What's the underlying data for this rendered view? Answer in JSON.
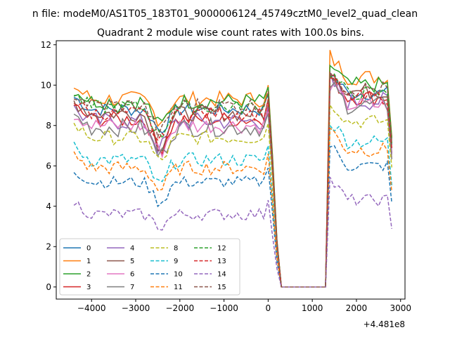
{
  "figure": {
    "suptitle": "n file: modeM0/AS1T05_183T01_9000006124_45749cztM0_level2_quad_clean",
    "title": "Quadrant 2 module wise count rates with 100.0s bins.",
    "offset_label": "+4.481e8"
  },
  "chart_data": {
    "type": "line",
    "title": "Quadrant 2 module wise count rates with 100.0s bins.",
    "xlabel": "",
    "ylabel": "",
    "x_offset": 448100000,
    "xlim": [
      -4800,
      3100
    ],
    "ylim": [
      -0.6,
      12.2
    ],
    "x_ticks": [
      -4000,
      -3000,
      -2000,
      -1000,
      0,
      1000,
      2000,
      3000
    ],
    "x_tick_labels": [
      "−4000",
      "−3000",
      "−2000",
      "−1000",
      "0",
      "1000",
      "2000",
      "3000"
    ],
    "y_ticks": [
      0,
      2,
      4,
      6,
      8,
      10,
      12
    ],
    "y_tick_labels": [
      "0",
      "2",
      "4",
      "6",
      "8",
      "10",
      "12"
    ],
    "grid": false,
    "legend": {
      "placement": "lower-left",
      "columns": 4
    },
    "series": [
      {
        "name": "0",
        "color": "#1f77b4",
        "dash": "solid",
        "base": 8.8,
        "noise": 0.35,
        "dip": 1.0,
        "post": 9.6
      },
      {
        "name": "1",
        "color": "#ff7f0e",
        "dash": "solid",
        "base": 9.3,
        "noise": 0.4,
        "dip": 1.0,
        "post": 10.4
      },
      {
        "name": "2",
        "color": "#2ca02c",
        "dash": "solid",
        "base": 9.2,
        "noise": 0.4,
        "dip": 1.2,
        "post": 10.0
      },
      {
        "name": "3",
        "color": "#d62728",
        "dash": "solid",
        "base": 8.3,
        "noise": 0.4,
        "dip": 1.4,
        "post": 9.4
      },
      {
        "name": "4",
        "color": "#9467bd",
        "dash": "solid",
        "base": 8.2,
        "noise": 0.45,
        "dip": 1.3,
        "post": 9.2
      },
      {
        "name": "5",
        "color": "#8c564b",
        "dash": "solid",
        "base": 8.6,
        "noise": 0.4,
        "dip": 1.6,
        "post": 9.7
      },
      {
        "name": "6",
        "color": "#e377c2",
        "dash": "solid",
        "base": 8.0,
        "noise": 0.4,
        "dip": 1.3,
        "post": 9.0
      },
      {
        "name": "7",
        "color": "#7f7f7f",
        "dash": "solid",
        "base": 7.9,
        "noise": 0.45,
        "dip": 1.4,
        "post": 9.0
      },
      {
        "name": "8",
        "color": "#bcbd22",
        "dash": "dashed",
        "base": 7.4,
        "noise": 0.35,
        "dip": 1.2,
        "post": 8.2
      },
      {
        "name": "9",
        "color": "#17becf",
        "dash": "dashed",
        "base": 6.3,
        "noise": 0.35,
        "dip": 1.3,
        "post": 7.2
      },
      {
        "name": "10",
        "color": "#1f77b4",
        "dash": "dashed",
        "base": 5.2,
        "noise": 0.3,
        "dip": 1.0,
        "post": 6.0
      },
      {
        "name": "11",
        "color": "#ff7f0e",
        "dash": "dashed",
        "base": 5.9,
        "noise": 0.35,
        "dip": 1.1,
        "post": 6.8
      },
      {
        "name": "12",
        "color": "#2ca02c",
        "dash": "dashed",
        "base": 8.9,
        "noise": 0.35,
        "dip": 1.4,
        "post": 9.6
      },
      {
        "name": "13",
        "color": "#d62728",
        "dash": "dashed",
        "base": 8.6,
        "noise": 0.35,
        "dip": 1.4,
        "post": 9.4
      },
      {
        "name": "14",
        "color": "#9467bd",
        "dash": "dashed",
        "base": 3.6,
        "noise": 0.3,
        "dip": 0.6,
        "post": 4.3
      },
      {
        "name": "15",
        "color": "#8c564b",
        "dash": "dashed",
        "base": 9.0,
        "noise": 0.4,
        "dip": 1.4,
        "post": 9.8
      }
    ],
    "time_range": {
      "start": -4400,
      "end": 2800,
      "step": 100
    },
    "gap": {
      "start": 300,
      "end": 1300,
      "value": 0
    }
  }
}
